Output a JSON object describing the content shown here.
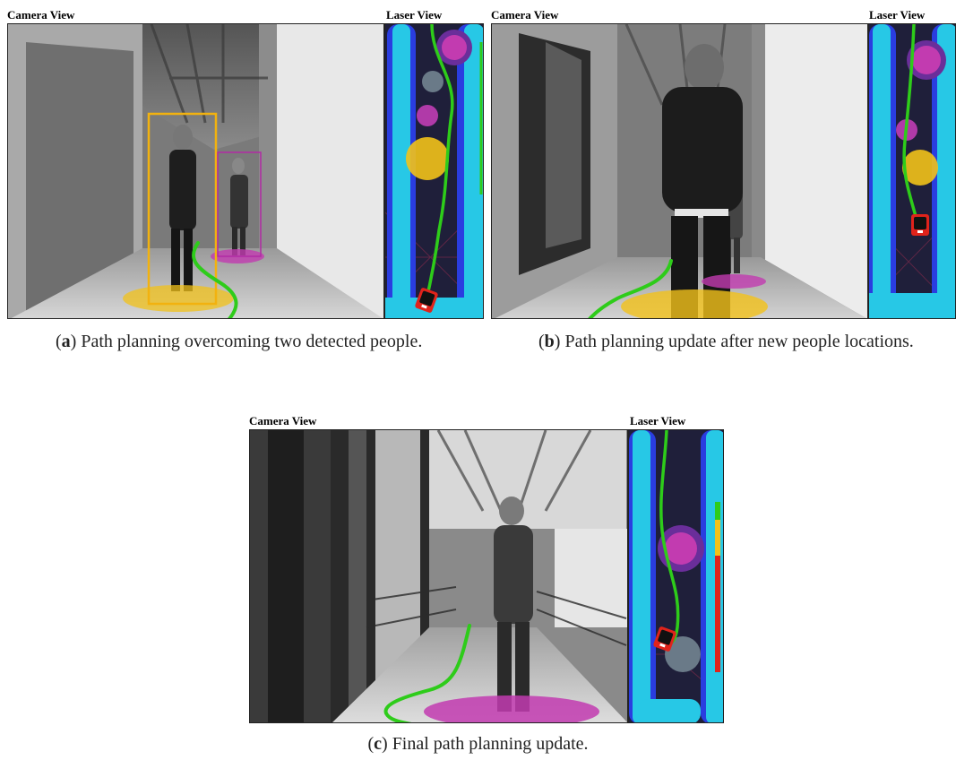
{
  "figure": {
    "label_camera": "Camera View",
    "label_laser": "Laser View",
    "panels": [
      {
        "id": "a",
        "caption_letter": "a",
        "caption_text": "Path planning overcoming two detected people."
      },
      {
        "id": "b",
        "caption_letter": "b",
        "caption_text": "Path planning update after new people locations."
      },
      {
        "id": "c",
        "caption_letter": "c",
        "caption_text": "Final path planning update."
      }
    ],
    "colors": {
      "path_green": "#2ecc1a",
      "person_yellow": "#f2c21a",
      "person_magenta": "#c23bb0",
      "map_background": "#1f1f3a",
      "obstacle_blue": "#2a3de0",
      "obstacle_cyan": "#27c8e6",
      "robot_red": "#e0231b"
    }
  }
}
